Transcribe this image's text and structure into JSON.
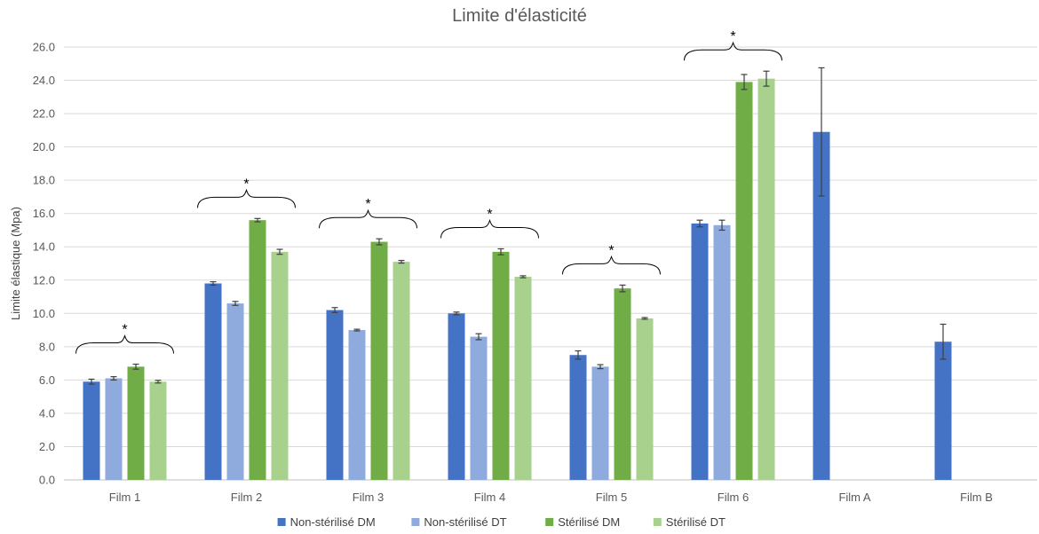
{
  "chart_data": {
    "type": "bar",
    "title": "Limite d'élasticité",
    "ylabel": "Limite élastique (Mpa)",
    "xlabel": "",
    "ylim": [
      0,
      26
    ],
    "yticks": [
      "0.0",
      "2.0",
      "4.0",
      "6.0",
      "8.0",
      "10.0",
      "12.0",
      "14.0",
      "16.0",
      "18.0",
      "20.0",
      "22.0",
      "24.0",
      "26.0"
    ],
    "grid": true,
    "legend_position": "bottom",
    "categories": [
      "Film 1",
      "Film 2",
      "Film 3",
      "Film 4",
      "Film 5",
      "Film 6",
      "Film A",
      "Film B"
    ],
    "series": [
      {
        "name": "Non-stérilisé DM",
        "color": "#4472C4",
        "values": [
          5.9,
          11.8,
          10.2,
          10.0,
          7.5,
          15.4,
          20.9,
          8.3
        ],
        "errors": [
          0.15,
          0.1,
          0.15,
          0.08,
          0.25,
          0.2,
          3.85,
          1.05
        ]
      },
      {
        "name": "Non-stérilisé DT",
        "color": "#8FAADC",
        "values": [
          6.1,
          10.6,
          9.0,
          8.6,
          6.8,
          15.3,
          null,
          null
        ],
        "errors": [
          0.1,
          0.12,
          0.05,
          0.18,
          0.12,
          0.3,
          null,
          null
        ]
      },
      {
        "name": "Stérilisé DM",
        "color": "#70AD47",
        "values": [
          6.8,
          15.6,
          14.3,
          13.7,
          11.5,
          23.9,
          null,
          null
        ],
        "errors": [
          0.15,
          0.1,
          0.18,
          0.18,
          0.2,
          0.45,
          null,
          null
        ]
      },
      {
        "name": "Stérilisé DT",
        "color": "#A9D18E",
        "values": [
          5.9,
          13.7,
          13.1,
          12.2,
          9.7,
          24.1,
          null,
          null
        ],
        "errors": [
          0.08,
          0.15,
          0.08,
          0.06,
          0.05,
          0.45,
          null,
          null
        ]
      }
    ],
    "annotations": [
      {
        "category": "Film 1",
        "text": "*"
      },
      {
        "category": "Film 2",
        "text": "*"
      },
      {
        "category": "Film 3",
        "text": "*"
      },
      {
        "category": "Film 4",
        "text": "*"
      },
      {
        "category": "Film 5",
        "text": "*"
      },
      {
        "category": "Film 6",
        "text": "*"
      }
    ]
  }
}
